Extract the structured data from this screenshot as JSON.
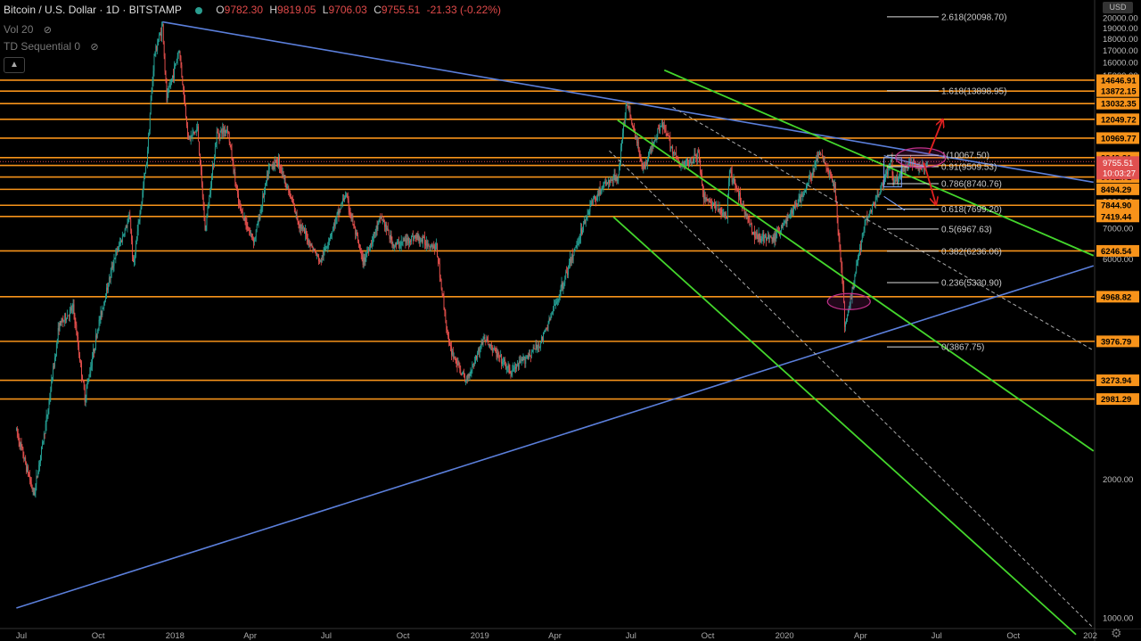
{
  "header": {
    "symbol": "Bitcoin / U.S. Dollar · 1D · BITSTAMP",
    "open_label": "O",
    "open": "9782.30",
    "high_label": "H",
    "high": "9819.05",
    "low_label": "L",
    "low": "9706.03",
    "close_label": "C",
    "close": "9755.51",
    "change": "-21.33 (-0.22%)"
  },
  "indicators": [
    {
      "label": "Vol 20",
      "icon": "eye-off-icon"
    },
    {
      "label": "TD Sequential 0",
      "icon": "eye-off-icon"
    }
  ],
  "collapse_icon": "chevron-up-icon",
  "currency_badge": "USD",
  "settings_icon": "gear-icon",
  "colors": {
    "background": "#000000",
    "up_candle": "#26a69a",
    "down_candle": "#ef5350",
    "horizontal_levels": "#f7931a",
    "trend_lines": "#5b7fdb",
    "channel": "#44d62c",
    "price_badge": "#e05050",
    "arrows": "#e02020"
  },
  "chart_data": {
    "type": "candlestick",
    "title": "Bitcoin / U.S. Dollar · 1D · BITSTAMP",
    "y_scale": "log",
    "ylim": [
      950,
      20500
    ],
    "x_range": [
      "2017-06-25",
      "2021-01-05"
    ],
    "y_ticks": [
      1000,
      2000,
      3000,
      4000,
      5000,
      6000,
      7000,
      8000,
      9000,
      10000,
      11000,
      12000,
      13000,
      14000,
      15000,
      16000,
      17000,
      18000,
      19000,
      20000
    ],
    "y_tick_labels": [
      "1000.00",
      "2000.00",
      "3000.00",
      "4000.00",
      "5000.00",
      "6000.00",
      "7000.00",
      "8000.00",
      "9000.00",
      "10000.00",
      "11000.00",
      "12000.00",
      "13000.00",
      "14000.00",
      "15000.00",
      "16000.00",
      "17000.00",
      "18000.00",
      "19000.00",
      "20000.00"
    ],
    "x_ticks": [
      {
        "date": "2017-07-01",
        "label": "Jul"
      },
      {
        "date": "2017-10-01",
        "label": "Oct"
      },
      {
        "date": "2018-01-01",
        "label": "2018"
      },
      {
        "date": "2018-04-01",
        "label": "Apr"
      },
      {
        "date": "2018-07-01",
        "label": "Jul"
      },
      {
        "date": "2018-10-01",
        "label": "Oct"
      },
      {
        "date": "2019-01-01",
        "label": "2019"
      },
      {
        "date": "2019-04-01",
        "label": "Apr"
      },
      {
        "date": "2019-07-01",
        "label": "Jul"
      },
      {
        "date": "2019-10-01",
        "label": "Oct"
      },
      {
        "date": "2020-01-01",
        "label": "2020"
      },
      {
        "date": "2020-04-01",
        "label": "Apr"
      },
      {
        "date": "2020-07-01",
        "label": "Jul"
      },
      {
        "date": "2020-10-01",
        "label": "Oct"
      },
      {
        "date": "2021-01-01",
        "label": "202"
      }
    ],
    "price_path": [
      [
        "2017-06-25",
        2550
      ],
      [
        "2017-07-16",
        1850
      ],
      [
        "2017-08-01",
        2750
      ],
      [
        "2017-08-15",
        4300
      ],
      [
        "2017-09-01",
        4700
      ],
      [
        "2017-09-15",
        3000
      ],
      [
        "2017-10-01",
        4300
      ],
      [
        "2017-10-20",
        6000
      ],
      [
        "2017-11-08",
        7400
      ],
      [
        "2017-11-12",
        5800
      ],
      [
        "2017-11-28",
        9800
      ],
      [
        "2017-12-07",
        16500
      ],
      [
        "2017-12-17",
        19300
      ],
      [
        "2017-12-22",
        13300
      ],
      [
        "2018-01-06",
        17100
      ],
      [
        "2018-01-17",
        10900
      ],
      [
        "2018-01-28",
        11500
      ],
      [
        "2018-02-06",
        6900
      ],
      [
        "2018-02-20",
        11200
      ],
      [
        "2018-03-05",
        11500
      ],
      [
        "2018-03-18",
        7900
      ],
      [
        "2018-04-01",
        6800
      ],
      [
        "2018-04-06",
        6600
      ],
      [
        "2018-04-24",
        9500
      ],
      [
        "2018-05-05",
        9800
      ],
      [
        "2018-05-29",
        7200
      ],
      [
        "2018-06-24",
        5900
      ],
      [
        "2018-07-24",
        8300
      ],
      [
        "2018-08-14",
        5900
      ],
      [
        "2018-09-05",
        7400
      ],
      [
        "2018-09-20",
        6400
      ],
      [
        "2018-10-15",
        6700
      ],
      [
        "2018-11-10",
        6350
      ],
      [
        "2018-11-25",
        3900
      ],
      [
        "2018-12-15",
        3250
      ],
      [
        "2019-01-06",
        4050
      ],
      [
        "2019-02-07",
        3400
      ],
      [
        "2019-03-15",
        3950
      ],
      [
        "2019-04-02",
        4800
      ],
      [
        "2019-05-14",
        7900
      ],
      [
        "2019-05-30",
        8700
      ],
      [
        "2019-06-15",
        9000
      ],
      [
        "2019-06-26",
        13200
      ],
      [
        "2019-07-16",
        9400
      ],
      [
        "2019-08-06",
        11900
      ],
      [
        "2019-08-29",
        9500
      ],
      [
        "2019-09-20",
        10100
      ],
      [
        "2019-09-26",
        8200
      ],
      [
        "2019-10-24",
        7400
      ],
      [
        "2019-10-27",
        9300
      ],
      [
        "2019-11-25",
        6800
      ],
      [
        "2019-12-18",
        6600
      ],
      [
        "2020-01-01",
        7200
      ],
      [
        "2020-01-25",
        8400
      ],
      [
        "2020-02-13",
        10300
      ],
      [
        "2020-03-01",
        8600
      ],
      [
        "2020-03-12",
        4900
      ],
      [
        "2020-03-13",
        4200
      ],
      [
        "2020-04-06",
        7200
      ],
      [
        "2020-04-29",
        8800
      ],
      [
        "2020-05-08",
        9900
      ],
      [
        "2020-05-10",
        8700
      ],
      [
        "2020-05-31",
        9700
      ],
      [
        "2020-06-15",
        9450
      ],
      [
        "2020-06-20",
        9755
      ]
    ],
    "horizontal_levels": [
      {
        "value": 14646.91,
        "label": "14646.91"
      },
      {
        "value": 13872.15,
        "label": "13872.15"
      },
      {
        "value": 13032.35,
        "label": "13032.35"
      },
      {
        "value": 12049.72,
        "label": "12049.72"
      },
      {
        "value": 10969.77,
        "label": "10969.77"
      },
      {
        "value": 9949.81,
        "label": "9949.81"
      },
      {
        "value": 9570.1,
        "label": "9570.10"
      },
      {
        "value": 9031.71,
        "label": "9031.71"
      },
      {
        "value": 8494.29,
        "label": "8494.29"
      },
      {
        "value": 7844.9,
        "label": "7844.90"
      },
      {
        "value": 7419.44,
        "label": "7419.44"
      },
      {
        "value": 6246.54,
        "label": "6246.54"
      },
      {
        "value": 4968.82,
        "label": "4968.82"
      },
      {
        "value": 3976.79,
        "label": "3976.79"
      },
      {
        "value": 3273.94,
        "label": "3273.94"
      },
      {
        "value": 2981.29,
        "label": "2981.29"
      }
    ],
    "current_price": {
      "value": 9755.51,
      "label": "9755.51",
      "countdown": "10:03:27"
    },
    "fibonacci": [
      {
        "label": "2.618(20098.70)",
        "value": 20098.7
      },
      {
        "label": "1.618(13898.95)",
        "value": 13898.95
      },
      {
        "label": "1(10067.50)",
        "value": 10067.5
      },
      {
        "label": "0.91(9509.53)",
        "value": 9509.53
      },
      {
        "label": "0.786(8740.76)",
        "value": 8740.76
      },
      {
        "label": "0.618(7699.20)",
        "value": 7699.2
      },
      {
        "label": "0.5(6967.63)",
        "value": 6967.63
      },
      {
        "label": "0.382(6236.06)",
        "value": 6236.06
      },
      {
        "label": "0.236(5330.90)",
        "value": 5330.9
      },
      {
        "label": "0(3867.75)",
        "value": 3867.75
      }
    ],
    "trend_lines": [
      {
        "kind": "resistance",
        "from": [
          "2017-12-17",
          19600
        ],
        "to": [
          "2021-01-05",
          8800
        ]
      },
      {
        "kind": "support",
        "from": [
          "2017-06-25",
          1050
        ],
        "to": [
          "2021-01-05",
          5800
        ]
      }
    ],
    "channel_lines": [
      {
        "from": [
          "2019-08-10",
          15400
        ],
        "to": [
          "2021-01-05",
          6100
        ]
      },
      {
        "from": [
          "2019-06-15",
          12000
        ],
        "to": [
          "2021-01-05",
          2300
        ]
      },
      {
        "from": [
          "2019-06-10",
          7400
        ],
        "to": [
          "2020-12-15",
          920
        ]
      }
    ],
    "dashed_lines": [
      {
        "from": [
          "2019-08-20",
          12800
        ],
        "to": [
          "2021-01-05",
          3800
        ]
      },
      {
        "from": [
          "2019-06-05",
          10300
        ],
        "to": [
          "2021-01-05",
          950
        ]
      }
    ],
    "arrows": [
      {
        "from": [
          "2020-06-22",
          10150
        ],
        "to": [
          "2020-07-08",
          12000
        ],
        "direction": "up"
      },
      {
        "from": [
          "2020-06-16",
          9700
        ],
        "to": [
          "2020-06-30",
          7900
        ],
        "direction": "down"
      }
    ],
    "ellipses": [
      {
        "center": [
          "2020-06-12",
          9950
        ]
      },
      {
        "center": [
          "2020-03-18",
          4850
        ]
      }
    ]
  }
}
